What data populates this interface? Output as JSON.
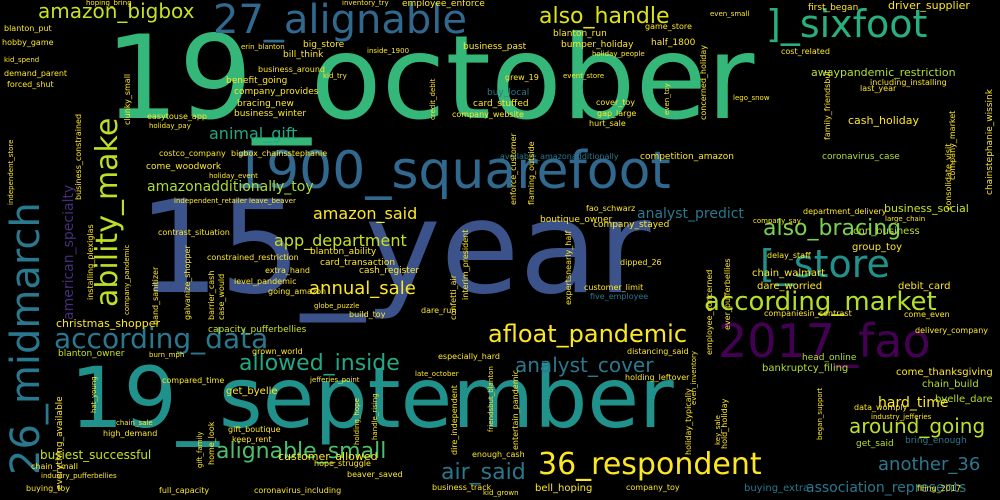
{
  "words": [
    {
      "text": "19_october",
      "color": "#35b779"
    },
    {
      "text": "15_year",
      "color": "#3b528b"
    },
    {
      "text": "19_september",
      "color": "#21918c"
    },
    {
      "text": "1900_squarefoot",
      "color": "#31688e"
    },
    {
      "text": "26_midmarch",
      "color": "#2a788e"
    },
    {
      "text": "27_alignable",
      "color": "#31688e"
    },
    {
      "text": "]_sixfoot",
      "color": "#29af7f"
    },
    {
      "text": "2017_fao",
      "color": "#440154"
    },
    {
      "text": "[_store",
      "color": "#21918c"
    },
    {
      "text": "ability_make",
      "color": "#bddf26"
    },
    {
      "text": "according_data",
      "color": "#2a788e"
    },
    {
      "text": "according_market",
      "color": "#b5de2b"
    },
    {
      "text": "36_respondent",
      "color": "#fde725"
    },
    {
      "text": "amazon_bigbox",
      "color": "#c8e020"
    },
    {
      "text": "also_handle",
      "color": "#dde318"
    },
    {
      "text": "afloat_pandemic",
      "color": "#fde725"
    },
    {
      "text": "allowed_inside",
      "color": "#22a884"
    },
    {
      "text": "alignable_small",
      "color": "#4ac16d"
    },
    {
      "text": "air_said",
      "color": "#2a788e"
    },
    {
      "text": "also_bracing",
      "color": "#7ad151"
    },
    {
      "text": "analyst_cover",
      "color": "#2a788e"
    },
    {
      "text": "around_going",
      "color": "#bddf26"
    },
    {
      "text": "annual_sale",
      "color": "#fde725"
    },
    {
      "text": "amazon_said",
      "color": "#fde725"
    },
    {
      "text": "another_36",
      "color": "#2a788e"
    },
    {
      "text": "american_specialty",
      "color": "#472d7b"
    },
    {
      "text": "amazonadditionally_toy",
      "color": "#addc30"
    },
    {
      "text": "animal_gift",
      "color": "#22a884"
    },
    {
      "text": "app_department",
      "color": "#c8e020"
    },
    {
      "text": "analyst_predict",
      "color": "#2a788e"
    },
    {
      "text": "association_represents",
      "color": "#2a788e"
    },
    {
      "text": "hard_time",
      "color": "#fde725"
    },
    {
      "text": "business_social",
      "color": "#c8e020"
    },
    {
      "text": "cash_holiday",
      "color": "#fde725"
    },
    {
      "text": "driver_supplier",
      "color": "#fde725"
    },
    {
      "text": "first_began",
      "color": "#fde725"
    },
    {
      "text": "busiest_successful",
      "color": "#c8e020"
    },
    {
      "text": "customer_allowed",
      "color": "#fde725"
    },
    {
      "text": "christmas_shopper",
      "color": "#fde725"
    },
    {
      "text": "awaypandemic_restriction",
      "color": "#b5de2b"
    },
    {
      "text": "group_toy",
      "color": "#fde725"
    },
    {
      "text": "cnn_business",
      "color": "#b5de2b"
    },
    {
      "text": "debit_card",
      "color": "#fde725"
    },
    {
      "text": "buying_extra",
      "color": "#2a788e"
    },
    {
      "text": "bell_hoping",
      "color": "#fde725"
    },
    {
      "text": "chain_walmart",
      "color": "#fde725"
    },
    {
      "text": "dare_worried",
      "color": "#fde725"
    },
    {
      "text": "get_byelle",
      "color": "#fde725"
    },
    {
      "text": "data_womply",
      "color": "#fde725"
    },
    {
      "text": "get_said",
      "color": "#b5de2b"
    },
    {
      "text": "bring_enough",
      "color": "#2a788e"
    },
    {
      "text": "chain_build",
      "color": "#b5de2b"
    },
    {
      "text": "come_thanksgiving",
      "color": "#fde725"
    },
    {
      "text": "bankruptcy_filing",
      "color": "#b5de2b"
    },
    {
      "text": "byelle_dare",
      "color": "#b5de2b"
    },
    {
      "text": "head_online",
      "color": "#b5de2b"
    },
    {
      "text": "capacity_pufferbellies",
      "color": "#c8e020"
    },
    {
      "text": "blanton_owner",
      "color": "#c8e020"
    },
    {
      "text": "blanton_ability",
      "color": "#fde725"
    },
    {
      "text": "card_transaction",
      "color": "#fde725"
    },
    {
      "text": "cash_register",
      "color": "#fde725"
    },
    {
      "text": "business_winter",
      "color": "#fde725"
    },
    {
      "text": "bracing_new",
      "color": "#fde725"
    },
    {
      "text": "company_provides",
      "color": "#fde725"
    },
    {
      "text": "benefit_going",
      "color": "#fde725"
    },
    {
      "text": "big_store",
      "color": "#fde725"
    },
    {
      "text": "bill_think",
      "color": "#fde725"
    },
    {
      "text": "card_stuffed",
      "color": "#fde725"
    },
    {
      "text": "buy_local",
      "color": "#2a788e"
    },
    {
      "text": "blanton_run",
      "color": "#fde725"
    },
    {
      "text": "bumper_holiday",
      "color": "#fde725"
    },
    {
      "text": "half_1800",
      "color": "#fde725"
    },
    {
      "text": "business_past",
      "color": "#fde725"
    },
    {
      "text": "employee_enforce",
      "color": "#fde725"
    },
    {
      "text": "game_store",
      "color": "#fde725"
    },
    {
      "text": "come_woodwork",
      "color": "#fde725"
    },
    {
      "text": "company_stayed",
      "color": "#fde725"
    },
    {
      "text": "boutique_owner",
      "color": "#fde725"
    },
    {
      "text": "competition_amazon",
      "color": "#fde725"
    },
    {
      "text": "coronavirus_case",
      "color": "#b5de2b"
    },
    {
      "text": "extra_hand",
      "color": "#fde725"
    },
    {
      "text": "going_amazon",
      "color": "#fde725"
    },
    {
      "text": "dare_run",
      "color": "#fde725"
    },
    {
      "text": "build_toy",
      "color": "#fde725"
    },
    {
      "text": "blanton_put",
      "color": "#fde725"
    },
    {
      "text": "hobby_game",
      "color": "#fde725"
    },
    {
      "text": "demand_parent",
      "color": "#fde725"
    },
    {
      "text": "forced_shut",
      "color": "#fde725"
    },
    {
      "text": "delay_staff",
      "color": "#fde725"
    },
    {
      "text": "compared_time",
      "color": "#fde725"
    },
    {
      "text": "grown_world",
      "color": "#fde725"
    },
    {
      "text": "holding_leftover",
      "color": "#fde725"
    },
    {
      "text": "distancing_said",
      "color": "#fde725"
    },
    {
      "text": "especially_hard",
      "color": "#fde725"
    },
    {
      "text": "contrast_situation",
      "color": "#fde725"
    },
    {
      "text": "constrained_restriction",
      "color": "#fde725"
    },
    {
      "text": "dipped_26",
      "color": "#fde725"
    },
    {
      "text": "customer_limit",
      "color": "#fde725"
    },
    {
      "text": "five_employee",
      "color": "#2a788e"
    },
    {
      "text": "available_amazonadditionally",
      "color": "#2a788e"
    },
    {
      "text": "fao_schwarz",
      "color": "#fde725"
    },
    {
      "text": "cost_related",
      "color": "#fde725"
    },
    {
      "text": "including_installing",
      "color": "#fde725"
    },
    {
      "text": "last_year",
      "color": "#fde725"
    },
    {
      "text": "company_market",
      "color": "#fde725"
    },
    {
      "text": "consolidate_visit",
      "color": "#fde725"
    },
    {
      "text": "chainstephanie_wissink",
      "color": "#fde725"
    },
    {
      "text": "family_friendsbut",
      "color": "#fde725"
    },
    {
      "text": "department_delivery",
      "color": "#fde725"
    },
    {
      "text": "hold_holiday",
      "color": "#fde725"
    },
    {
      "text": "enough_cash",
      "color": "#fde725"
    },
    {
      "text": "home_look",
      "color": "#fde725"
    },
    {
      "text": "gift_boutique",
      "color": "#fde725"
    },
    {
      "text": "keep_rent",
      "color": "#fde725"
    },
    {
      "text": "beaver_saved",
      "color": "#fde725"
    },
    {
      "text": "hope_struggle",
      "color": "#fde725"
    },
    {
      "text": "high_demand",
      "color": "#fde725"
    },
    {
      "text": "chain_small",
      "color": "#fde725"
    },
    {
      "text": "buying_toy",
      "color": "#fde725"
    },
    {
      "text": "full_capacity",
      "color": "#fde725"
    },
    {
      "text": "coronavirus_including",
      "color": "#fde725"
    },
    {
      "text": "business_track",
      "color": "#fde725"
    },
    {
      "text": "company_toy",
      "color": "#fde725"
    },
    {
      "text": "filing_2017",
      "color": "#fde725"
    },
    {
      "text": "kid_grown",
      "color": "#fde725"
    },
    {
      "text": "industry_pufferbellies",
      "color": "#fde725"
    },
    {
      "text": "industry_jefferies",
      "color": "#fde725"
    },
    {
      "text": "delivery_company",
      "color": "#fde725"
    },
    {
      "text": "companiesin_contrast",
      "color": "#fde725"
    },
    {
      "text": "late_october",
      "color": "#fde725"
    },
    {
      "text": "jefferies_point",
      "color": "#fde725"
    },
    {
      "text": "globe_puzzle",
      "color": "#fde725"
    },
    {
      "text": "everything_available",
      "color": "#fde725"
    },
    {
      "text": "galvanize_shopper",
      "color": "#fde725"
    },
    {
      "text": "costco_company",
      "color": "#fde725"
    },
    {
      "text": "bigbox_chainsstephanie",
      "color": "#fde725"
    },
    {
      "text": "company_website",
      "color": "#fde725"
    },
    {
      "text": "credit_debit",
      "color": "#fde725"
    },
    {
      "text": "event_store",
      "color": "#fde725"
    },
    {
      "text": "inside_1900",
      "color": "#fde725"
    },
    {
      "text": "kid_spend",
      "color": "#fde725"
    },
    {
      "text": "kid_try",
      "color": "#fde725"
    },
    {
      "text": "business_around",
      "color": "#fde725"
    },
    {
      "text": "erin_blanton",
      "color": "#fde725"
    },
    {
      "text": "grew_19",
      "color": "#fde725"
    },
    {
      "text": "holiday_people",
      "color": "#fde725"
    },
    {
      "text": "inventory_try",
      "color": "#fde725"
    },
    {
      "text": "hoping_bring",
      "color": "#fde725"
    },
    {
      "text": "even_small",
      "color": "#fde725"
    },
    {
      "text": "lego_snow",
      "color": "#fde725"
    },
    {
      "text": "cover_toy",
      "color": "#fde725"
    },
    {
      "text": "gap_large",
      "color": "#fde725"
    },
    {
      "text": "hurt_sale",
      "color": "#fde725"
    },
    {
      "text": "enforce_customer",
      "color": "#fde725"
    },
    {
      "text": "flaming_outside",
      "color": "#fde725"
    },
    {
      "text": "concerned_holiday",
      "color": "#fde725"
    },
    {
      "text": "clunky_small",
      "color": "#fde725"
    },
    {
      "text": "easytouse_app",
      "color": "#fde725"
    },
    {
      "text": "holiday_pay",
      "color": "#fde725"
    },
    {
      "text": "holiday_event",
      "color": "#fde725"
    },
    {
      "text": "independent_retailer",
      "color": "#fde725"
    },
    {
      "text": "leave_beaver",
      "color": "#fde725"
    },
    {
      "text": "business_constrained",
      "color": "#fde725"
    },
    {
      "text": "installing_plexiglas",
      "color": "#fde725"
    },
    {
      "text": "company_pandemic",
      "color": "#fde725"
    },
    {
      "text": "hand_sanitizer",
      "color": "#fde725"
    },
    {
      "text": "barrier_cash",
      "color": "#fde725"
    },
    {
      "text": "case_would",
      "color": "#fde725"
    },
    {
      "text": "level_pandemic",
      "color": "#fde725"
    },
    {
      "text": "confetti_air",
      "color": "#fde725"
    },
    {
      "text": "interim_president",
      "color": "#fde725"
    },
    {
      "text": "expertsnearly_half",
      "color": "#fde725"
    },
    {
      "text": "employee_concerned",
      "color": "#fde725"
    },
    {
      "text": "ever_pufferbellies",
      "color": "#fde725"
    },
    {
      "text": "large_chain",
      "color": "#fde725"
    },
    {
      "text": "company_say",
      "color": "#fde725"
    },
    {
      "text": "come_even",
      "color": "#fde725"
    },
    {
      "text": "independent_store",
      "color": "#fde725"
    },
    {
      "text": "burn_mph",
      "color": "#fde725"
    },
    {
      "text": "hat_young",
      "color": "#fde725"
    },
    {
      "text": "chain_sale",
      "color": "#fde725"
    },
    {
      "text": "gift_family",
      "color": "#fde725"
    },
    {
      "text": "holding_hope",
      "color": "#fde725"
    },
    {
      "text": "handle_rising",
      "color": "#fde725"
    },
    {
      "text": "dire_independent",
      "color": "#fde725"
    },
    {
      "text": "entertain_pandemic",
      "color": "#fde725"
    },
    {
      "text": "friendsbut_blanton",
      "color": "#fde725"
    },
    {
      "text": "holiday_typically",
      "color": "#fde725"
    },
    {
      "text": "even_inventory",
      "color": "#fde725"
    },
    {
      "text": "key_sale",
      "color": "#fde725"
    },
    {
      "text": "began_support",
      "color": "#fde725"
    },
    {
      "text": "even_toy",
      "color": "#fde725"
    }
  ]
}
